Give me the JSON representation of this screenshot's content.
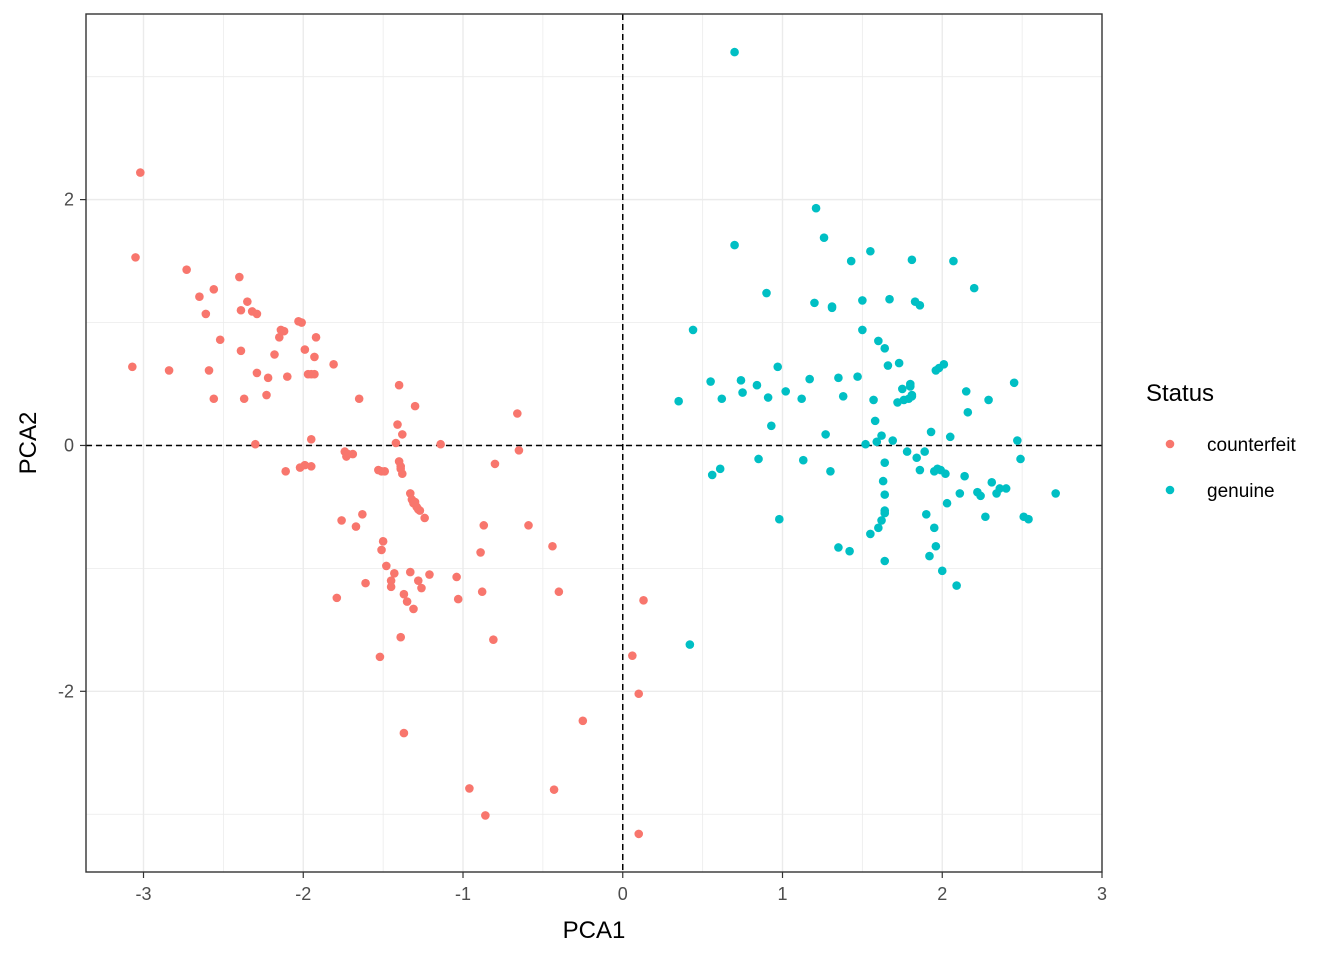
{
  "chart_data": {
    "type": "scatter",
    "xlabel": "PCA1",
    "ylabel": "PCA2",
    "xlim": [
      -3.36,
      3.0
    ],
    "ylim": [
      -3.47,
      3.51
    ],
    "x_ticks": [
      -3,
      -2,
      -1,
      0,
      1,
      2,
      3
    ],
    "y_ticks": [
      -2,
      0,
      2
    ],
    "grid": true,
    "reference_lines": {
      "x": 0,
      "y": 0,
      "style": "dashed"
    },
    "legend": {
      "title": "Status",
      "position": "right"
    },
    "series": [
      {
        "name": "counterfeit",
        "color": "#F8766D",
        "points": [
          [
            -3.02,
            2.22
          ],
          [
            -3.05,
            1.53
          ],
          [
            -3.07,
            0.64
          ],
          [
            -2.84,
            0.61
          ],
          [
            -2.73,
            1.43
          ],
          [
            -2.65,
            1.21
          ],
          [
            -2.61,
            1.07
          ],
          [
            -2.59,
            0.61
          ],
          [
            -2.56,
            1.27
          ],
          [
            -2.56,
            0.38
          ],
          [
            -2.52,
            0.86
          ],
          [
            -2.4,
            1.37
          ],
          [
            -2.39,
            1.1
          ],
          [
            -2.39,
            0.77
          ],
          [
            -2.37,
            0.38
          ],
          [
            -2.35,
            1.17
          ],
          [
            -2.32,
            1.09
          ],
          [
            -2.29,
            1.07
          ],
          [
            -2.29,
            0.59
          ],
          [
            -2.3,
            0.01
          ],
          [
            -2.23,
            0.41
          ],
          [
            -2.22,
            0.55
          ],
          [
            -2.18,
            0.74
          ],
          [
            -2.15,
            0.88
          ],
          [
            -2.14,
            0.94
          ],
          [
            -2.12,
            0.93
          ],
          [
            -2.1,
            0.56
          ],
          [
            -2.11,
            -0.21
          ],
          [
            -2.03,
            1.01
          ],
          [
            -2.01,
            1.0
          ],
          [
            -1.99,
            0.78
          ],
          [
            -1.97,
            0.58
          ],
          [
            -1.95,
            0.58
          ],
          [
            -1.93,
            0.58
          ],
          [
            -1.93,
            0.72
          ],
          [
            -1.92,
            0.88
          ],
          [
            -2.02,
            -0.18
          ],
          [
            -1.99,
            -0.16
          ],
          [
            -1.95,
            -0.17
          ],
          [
            -1.95,
            0.05
          ],
          [
            -1.81,
            0.66
          ],
          [
            -1.76,
            -0.61
          ],
          [
            -1.74,
            -0.05
          ],
          [
            -1.73,
            -0.09
          ],
          [
            -1.72,
            -0.07
          ],
          [
            -1.69,
            -0.07
          ],
          [
            -1.65,
            0.38
          ],
          [
            -1.67,
            -0.66
          ],
          [
            -1.63,
            -0.56
          ],
          [
            -1.61,
            -1.12
          ],
          [
            -1.79,
            -1.24
          ],
          [
            -1.53,
            -0.2
          ],
          [
            -1.51,
            -0.21
          ],
          [
            -1.49,
            -0.21
          ],
          [
            -1.51,
            -0.85
          ],
          [
            -1.5,
            -0.78
          ],
          [
            -1.48,
            -0.98
          ],
          [
            -1.45,
            -1.1
          ],
          [
            -1.45,
            -1.15
          ],
          [
            -1.43,
            -1.04
          ],
          [
            -1.42,
            0.02
          ],
          [
            -1.4,
            0.49
          ],
          [
            -1.41,
            0.17
          ],
          [
            -1.4,
            -0.13
          ],
          [
            -1.39,
            -0.17
          ],
          [
            -1.39,
            -0.19
          ],
          [
            -1.38,
            -0.23
          ],
          [
            -1.38,
            0.09
          ],
          [
            -1.37,
            -1.21
          ],
          [
            -1.35,
            -1.27
          ],
          [
            -1.33,
            -0.39
          ],
          [
            -1.33,
            -1.03
          ],
          [
            -1.32,
            -0.44
          ],
          [
            -1.31,
            -0.47
          ],
          [
            -1.3,
            -0.46
          ],
          [
            -1.29,
            -0.5
          ],
          [
            -1.28,
            -0.52
          ],
          [
            -1.27,
            -0.53
          ],
          [
            -1.31,
            -1.33
          ],
          [
            -1.28,
            -1.1
          ],
          [
            -1.26,
            -1.16
          ],
          [
            -1.24,
            -0.59
          ],
          [
            -1.21,
            -1.05
          ],
          [
            -1.3,
            0.32
          ],
          [
            -1.14,
            0.01
          ],
          [
            -1.52,
            -1.72
          ],
          [
            -1.39,
            -1.56
          ],
          [
            -1.37,
            -2.34
          ],
          [
            -1.04,
            -1.07
          ],
          [
            -1.03,
            -1.25
          ],
          [
            -0.96,
            -2.79
          ],
          [
            -0.89,
            -0.87
          ],
          [
            -0.88,
            -1.19
          ],
          [
            -0.87,
            -0.65
          ],
          [
            -0.86,
            -3.01
          ],
          [
            -0.81,
            -1.58
          ],
          [
            -0.8,
            -0.15
          ],
          [
            -0.66,
            0.26
          ],
          [
            -0.65,
            -0.04
          ],
          [
            -0.59,
            -0.65
          ],
          [
            -0.44,
            -0.82
          ],
          [
            -0.43,
            -2.8
          ],
          [
            -0.4,
            -1.19
          ],
          [
            -0.25,
            -2.24
          ],
          [
            0.06,
            -1.71
          ],
          [
            0.1,
            -3.16
          ],
          [
            0.1,
            -2.02
          ],
          [
            0.13,
            -1.26
          ]
        ]
      },
      {
        "name": "genuine",
        "color": "#00BFC4",
        "points": [
          [
            0.35,
            0.36
          ],
          [
            0.44,
            0.94
          ],
          [
            0.42,
            -1.62
          ],
          [
            0.55,
            0.52
          ],
          [
            0.56,
            -0.24
          ],
          [
            0.61,
            -0.19
          ],
          [
            0.62,
            0.38
          ],
          [
            0.7,
            3.2
          ],
          [
            0.7,
            1.63
          ],
          [
            0.74,
            0.53
          ],
          [
            0.75,
            0.43
          ],
          [
            0.84,
            0.49
          ],
          [
            0.85,
            -0.11
          ],
          [
            0.9,
            1.24
          ],
          [
            0.91,
            0.39
          ],
          [
            0.93,
            0.16
          ],
          [
            0.97,
            0.64
          ],
          [
            0.98,
            -0.6
          ],
          [
            1.02,
            0.44
          ],
          [
            1.12,
            0.38
          ],
          [
            1.13,
            -0.12
          ],
          [
            1.17,
            0.54
          ],
          [
            1.2,
            1.16
          ],
          [
            1.21,
            1.93
          ],
          [
            1.26,
            1.69
          ],
          [
            1.27,
            0.09
          ],
          [
            1.3,
            -0.21
          ],
          [
            1.31,
            1.12
          ],
          [
            1.31,
            1.13
          ],
          [
            1.35,
            -0.83
          ],
          [
            1.35,
            0.55
          ],
          [
            1.38,
            0.4
          ],
          [
            1.42,
            -0.86
          ],
          [
            1.43,
            1.5
          ],
          [
            1.47,
            0.56
          ],
          [
            1.5,
            1.18
          ],
          [
            1.5,
            0.94
          ],
          [
            1.52,
            0.01
          ],
          [
            1.55,
            1.58
          ],
          [
            1.55,
            -0.72
          ],
          [
            1.57,
            0.37
          ],
          [
            1.58,
            0.2
          ],
          [
            1.59,
            0.03
          ],
          [
            1.6,
            -0.67
          ],
          [
            1.6,
            0.85
          ],
          [
            1.62,
            -0.61
          ],
          [
            1.62,
            0.08
          ],
          [
            1.63,
            -0.29
          ],
          [
            1.64,
            -0.55
          ],
          [
            1.64,
            -0.53
          ],
          [
            1.64,
            -0.94
          ],
          [
            1.64,
            -0.4
          ],
          [
            1.64,
            -0.14
          ],
          [
            1.64,
            0.79
          ],
          [
            1.66,
            0.65
          ],
          [
            1.67,
            1.19
          ],
          [
            1.69,
            0.04
          ],
          [
            1.72,
            0.35
          ],
          [
            1.73,
            0.67
          ],
          [
            1.75,
            0.46
          ],
          [
            1.76,
            0.37
          ],
          [
            1.78,
            -0.05
          ],
          [
            1.79,
            0.38
          ],
          [
            1.8,
            0.5
          ],
          [
            1.8,
            0.48
          ],
          [
            1.81,
            0.4
          ],
          [
            1.81,
            0.41
          ],
          [
            1.81,
            1.51
          ],
          [
            1.83,
            1.17
          ],
          [
            1.84,
            -0.1
          ],
          [
            1.86,
            -0.2
          ],
          [
            1.86,
            1.14
          ],
          [
            1.89,
            -0.05
          ],
          [
            1.9,
            -0.56
          ],
          [
            1.92,
            -0.9
          ],
          [
            1.93,
            0.11
          ],
          [
            1.95,
            -0.21
          ],
          [
            1.95,
            -0.67
          ],
          [
            1.96,
            -0.82
          ],
          [
            1.96,
            0.61
          ],
          [
            1.97,
            -0.19
          ],
          [
            1.98,
            0.63
          ],
          [
            1.99,
            -0.2
          ],
          [
            2.0,
            -1.02
          ],
          [
            2.01,
            0.66
          ],
          [
            2.02,
            -0.23
          ],
          [
            2.03,
            -0.47
          ],
          [
            2.05,
            0.07
          ],
          [
            2.07,
            1.5
          ],
          [
            2.09,
            -1.14
          ],
          [
            2.11,
            -0.39
          ],
          [
            2.14,
            -0.25
          ],
          [
            2.15,
            0.44
          ],
          [
            2.16,
            0.27
          ],
          [
            2.2,
            1.28
          ],
          [
            2.22,
            -0.38
          ],
          [
            2.24,
            -0.41
          ],
          [
            2.27,
            -0.58
          ],
          [
            2.29,
            0.37
          ],
          [
            2.31,
            -0.3
          ],
          [
            2.34,
            -0.39
          ],
          [
            2.36,
            -0.35
          ],
          [
            2.4,
            -0.35
          ],
          [
            2.45,
            0.51
          ],
          [
            2.47,
            0.04
          ],
          [
            2.49,
            -0.11
          ],
          [
            2.51,
            -0.58
          ],
          [
            2.54,
            -0.6
          ],
          [
            2.71,
            -0.39
          ]
        ]
      }
    ]
  }
}
